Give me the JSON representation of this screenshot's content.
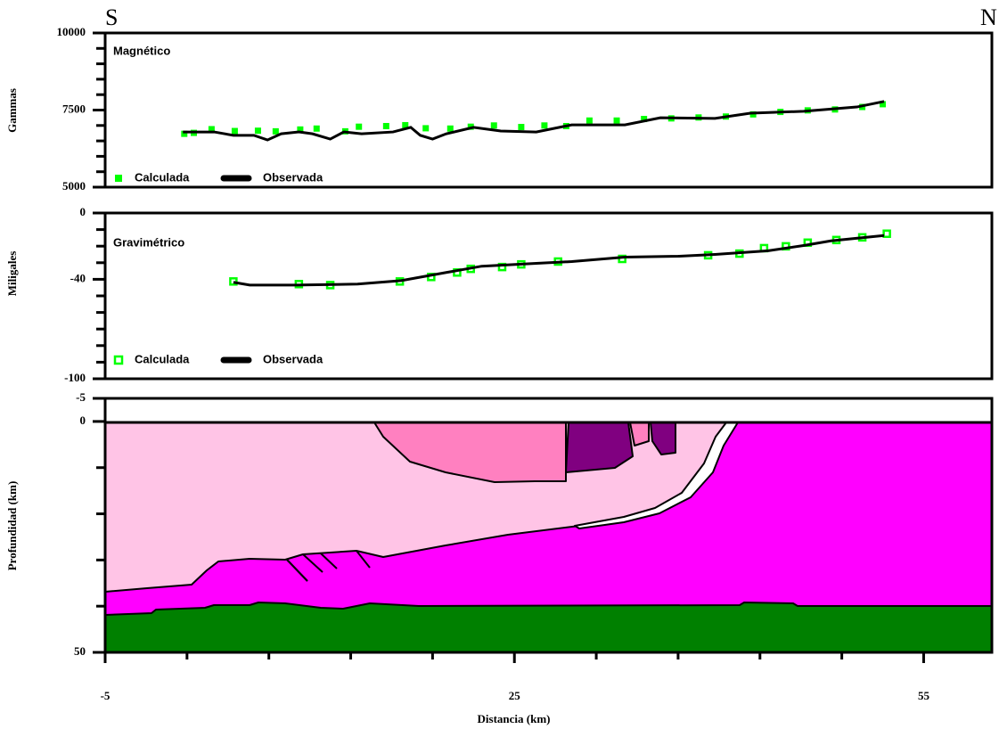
{
  "header": {
    "left": "S",
    "right": "N"
  },
  "chart_data": [
    {
      "type": "line",
      "title": "Magnético",
      "y_label": "Gammas",
      "xlim": [
        -5,
        60
      ],
      "ylim": [
        5000,
        10000
      ],
      "yticks": [
        5000,
        7500,
        10000
      ],
      "yminor": [
        5500,
        6000,
        6500,
        7000,
        8000,
        8500,
        9000,
        9500
      ],
      "series": [
        {
          "name": "Calculada",
          "color": "#00ff00",
          "marker": "square",
          "x": [
            0.8,
            1.5,
            2.8,
            4.5,
            6.2,
            7.5,
            9.3,
            10.5,
            12.6,
            13.6,
            15.6,
            17.0,
            18.5,
            20.3,
            21.8,
            23.5,
            25.5,
            27.2,
            28.8,
            30.5,
            32.5,
            34.5,
            36.5,
            38.5,
            40.5,
            42.5,
            44.5,
            46.5,
            48.5,
            50.5,
            52.0
          ],
          "values": [
            6730,
            6760,
            6880,
            6820,
            6830,
            6810,
            6870,
            6900,
            6810,
            6960,
            6980,
            7010,
            6910,
            6900,
            6960,
            7000,
            6950,
            7000,
            6980,
            7160,
            7160,
            7210,
            7230,
            7260,
            7290,
            7360,
            7440,
            7490,
            7520,
            7600,
            7690
          ]
        },
        {
          "name": "Observada",
          "color": "#000000",
          "marker": "line",
          "x": [
            0.7,
            3.0,
            4.4,
            5.9,
            6.9,
            7.9,
            9.2,
            10.2,
            11.5,
            12.5,
            13.8,
            16.1,
            17.4,
            18.1,
            19.0,
            20.0,
            22.0,
            24.0,
            26.6,
            29.2,
            33.1,
            35.7,
            39.7,
            42.3,
            46.2,
            50.1,
            52.1
          ],
          "values": [
            6790,
            6790,
            6680,
            6680,
            6530,
            6730,
            6790,
            6730,
            6560,
            6790,
            6730,
            6790,
            6940,
            6680,
            6560,
            6730,
            6940,
            6820,
            6790,
            7020,
            7020,
            7250,
            7230,
            7400,
            7460,
            7600,
            7780
          ]
        }
      ]
    },
    {
      "type": "line",
      "title": "Gravimétrico",
      "y_label": "Miligales",
      "xlim": [
        -5,
        60
      ],
      "ylim": [
        -100,
        0
      ],
      "yticks": [
        -100,
        -40,
        0
      ],
      "yminor": [
        -90,
        -80,
        -70,
        -60,
        -50,
        -30,
        -20,
        -10
      ],
      "series": [
        {
          "name": "Calculada",
          "color": "#00ff00",
          "marker": "hollow-square",
          "x": [
            4.4,
            9.2,
            11.5,
            16.6,
            18.9,
            20.8,
            21.8,
            24.1,
            25.5,
            28.2,
            32.9,
            39.2,
            41.5,
            43.3,
            44.9,
            46.5,
            48.6,
            50.5,
            52.3
          ],
          "values": [
            -41.3,
            -42.9,
            -43.5,
            -41.3,
            -38.6,
            -35.9,
            -33.7,
            -32.6,
            -31.0,
            -29.3,
            -27.7,
            -25.5,
            -24.5,
            -21.2,
            -20.1,
            -17.9,
            -16.3,
            -14.7,
            -12.5
          ]
        },
        {
          "name": "Observada",
          "color": "#000000",
          "marker": "line",
          "x": [
            4.4,
            5.6,
            8.9,
            13.5,
            16.7,
            20.0,
            22.6,
            26.6,
            29.2,
            33.1,
            37.0,
            39.7,
            43.6,
            46.2,
            48.2,
            52.1
          ],
          "values": [
            -41.8,
            -43.5,
            -43.5,
            -42.9,
            -40.8,
            -35.9,
            -32.1,
            -30.4,
            -29.3,
            -26.6,
            -26.1,
            -25.0,
            -22.8,
            -19.6,
            -16.8,
            -13.6
          ]
        }
      ]
    },
    {
      "type": "section",
      "y_label": "Profundidad (km)",
      "x_label": "Distancia (km)",
      "xlim": [
        -5,
        60
      ],
      "ylim": [
        50,
        -5
      ],
      "yticks": [
        -5,
        0,
        50
      ],
      "yminor": [
        10,
        20,
        30,
        40
      ],
      "xticks": [
        -5,
        25,
        55
      ],
      "xminor": [
        1,
        7,
        13,
        19,
        31,
        37,
        43,
        49
      ]
    }
  ]
}
